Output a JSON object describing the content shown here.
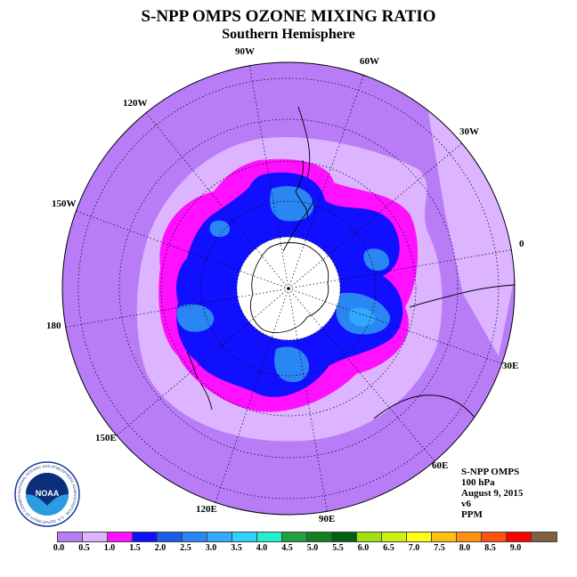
{
  "title": "S-NPP OMPS OZONE MIXING RATIO",
  "subtitle": "Southern Hemisphere",
  "longitude_labels": [
    "90W",
    "60W",
    "30W",
    "0",
    "30E",
    "60E",
    "90E",
    "120E",
    "150E",
    "180",
    "150W",
    "120W"
  ],
  "info": {
    "instrument": "S-NPP OMPS",
    "level": "100 hPa",
    "date": "August 9, 2015",
    "version": "v6",
    "units": "PPM"
  },
  "logo": {
    "name": "NOAA",
    "ring_text": "NATIONAL OCEANIC AND ATMOSPHERIC ADMINISTRATION · U.S. DEPARTMENT OF COMMERCE"
  },
  "colorbar": {
    "ticks": [
      "0.0",
      "0.5",
      "1.0",
      "1.5",
      "2.0",
      "2.5",
      "3.0",
      "3.5",
      "4.0",
      "4.5",
      "5.0",
      "5.5",
      "6.0",
      "6.5",
      "7.0",
      "7.5",
      "8.0",
      "8.5",
      "9.0"
    ],
    "colors": [
      "#b87cf7",
      "#dcb4ff",
      "#ff10ff",
      "#1010ff",
      "#1a5ee8",
      "#2a86f2",
      "#32a8ff",
      "#30d0ff",
      "#20f0d0",
      "#20a040",
      "#108020",
      "#006010",
      "#a0e010",
      "#d0f010",
      "#ffff10",
      "#ffc010",
      "#ff9010",
      "#ff5010",
      "#ff0000",
      "#806040"
    ]
  },
  "field_colors": {
    "outer": "#b87cf7",
    "light": "#dcb4ff",
    "magenta": "#ff10ff",
    "blue": "#1010ff",
    "midblue": "#2a86f2",
    "lightblue": "#32a8ff",
    "pole": "#ffffff"
  }
}
